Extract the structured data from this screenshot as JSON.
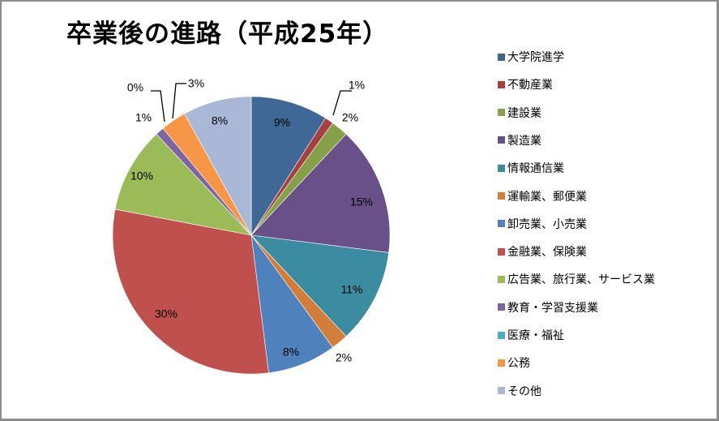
{
  "chart_data": {
    "type": "pie",
    "title": "卒業後の進路（平成25年）",
    "categories": [
      "大学院進学",
      "不動産業",
      "建設業",
      "製造業",
      "情報通信業",
      "運輸業、郵便業",
      "卸売業、小売業",
      "金融業、保険業",
      "広告業、旅行業、サービス業",
      "教育・学習支援業",
      "医療・福祉",
      "公務",
      "その他"
    ],
    "values": [
      9,
      1,
      2,
      15,
      11,
      2,
      8,
      30,
      10,
      1,
      0,
      3,
      8
    ],
    "labels": [
      "9%",
      "1%",
      "2%",
      "15%",
      "11%",
      "2%",
      "8%",
      "30%",
      "10%",
      "1%",
      "0%",
      "3%",
      "8%"
    ],
    "colors": [
      "#3F6897",
      "#A63F3F",
      "#86A04A",
      "#6A5088",
      "#3B8CA0",
      "#D27E3A",
      "#4F81BD",
      "#C0504D",
      "#9BBB59",
      "#8064A2",
      "#4BACC6",
      "#F79646",
      "#A9B8D6"
    ],
    "legend_position": "right",
    "start_angle_deg": 0,
    "direction": "clockwise"
  },
  "title": "卒業後の進路（平成25年）",
  "legend": [
    {
      "label": "大学院進学",
      "color": "#3F6897"
    },
    {
      "label": "不動産業",
      "color": "#A63F3F"
    },
    {
      "label": "建設業",
      "color": "#86A04A"
    },
    {
      "label": "製造業",
      "color": "#6A5088"
    },
    {
      "label": "情報通信業",
      "color": "#3B8CA0"
    },
    {
      "label": "運輸業、郵便業",
      "color": "#D27E3A"
    },
    {
      "label": "卸売業、小売業",
      "color": "#4F81BD"
    },
    {
      "label": "金融業、保険業",
      "color": "#C0504D"
    },
    {
      "label": "広告業、旅行業、サービス業",
      "color": "#9BBB59"
    },
    {
      "label": "教育・学習支援業",
      "color": "#8064A2"
    },
    {
      "label": "医療・福祉",
      "color": "#4BACC6"
    },
    {
      "label": "公務",
      "color": "#F79646"
    },
    {
      "label": "その他",
      "color": "#A9B8D6"
    }
  ]
}
